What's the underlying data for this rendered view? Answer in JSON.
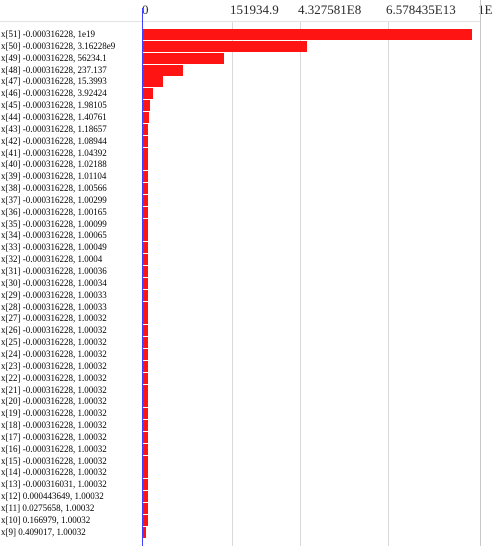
{
  "scale": {
    "ticks": [
      {
        "label": "0",
        "value": 0
      },
      {
        "label": "151934.9",
        "value": 0.2673
      },
      {
        "label": "4.327581E8",
        "value": 0.4673
      },
      {
        "label": "6.578435E13",
        "value": 0.7292
      },
      {
        "label": "1E",
        "value": 1.0
      }
    ]
  },
  "colors": {
    "bar": "#ff1414",
    "zero_line": "#4040ff",
    "grid": "#d9d9d9"
  },
  "rows": [
    {
      "label": "x[51] -0.000316228, 1e19",
      "fill": 1.0
    },
    {
      "label": "x[50] -0.000316228, 3.16228e9",
      "fill": 0.4982
    },
    {
      "label": "x[49] -0.000316228, 56234.1",
      "fill": 0.2467
    },
    {
      "label": "x[48] -0.000316228, 237.137",
      "fill": 0.1216
    },
    {
      "label": "x[47] -0.000316228, 15.3993",
      "fill": 0.0593
    },
    {
      "label": "x[46] -0.000316228, 3.92424",
      "fill": 0.0297
    },
    {
      "label": "x[45] -0.000316228, 1.98105",
      "fill": 0.0208
    },
    {
      "label": "x[44] -0.000316228, 1.40761",
      "fill": 0.0178
    },
    {
      "label": "x[43] -0.000316228, 1.18657",
      "fill": 0.0163
    },
    {
      "label": "x[42] -0.000316228, 1.08944",
      "fill": 0.0163
    },
    {
      "label": "x[41] -0.000316228, 1.04392",
      "fill": 0.0163
    },
    {
      "label": "x[40] -0.000316228, 1.02188",
      "fill": 0.0163
    },
    {
      "label": "x[39] -0.000316228, 1.01104",
      "fill": 0.0163
    },
    {
      "label": "x[38] -0.000316228, 1.00566",
      "fill": 0.0163
    },
    {
      "label": "x[37] -0.000316228, 1.00299",
      "fill": 0.0163
    },
    {
      "label": "x[36] -0.000316228, 1.00165",
      "fill": 0.0163
    },
    {
      "label": "x[35] -0.000316228, 1.00099",
      "fill": 0.0163
    },
    {
      "label": "x[34] -0.000316228, 1.00065",
      "fill": 0.0163
    },
    {
      "label": "x[33] -0.000316228, 1.00049",
      "fill": 0.0163
    },
    {
      "label": "x[32] -0.000316228, 1.0004",
      "fill": 0.0163
    },
    {
      "label": "x[31] -0.000316228, 1.00036",
      "fill": 0.0163
    },
    {
      "label": "x[30] -0.000316228, 1.00034",
      "fill": 0.0163
    },
    {
      "label": "x[29] -0.000316228, 1.00033",
      "fill": 0.0163
    },
    {
      "label": "x[28] -0.000316228, 1.00033",
      "fill": 0.0163
    },
    {
      "label": "x[27] -0.000316228, 1.00032",
      "fill": 0.0163
    },
    {
      "label": "x[26] -0.000316228, 1.00032",
      "fill": 0.0163
    },
    {
      "label": "x[25] -0.000316228, 1.00032",
      "fill": 0.0163
    },
    {
      "label": "x[24] -0.000316228, 1.00032",
      "fill": 0.0163
    },
    {
      "label": "x[23] -0.000316228, 1.00032",
      "fill": 0.0163
    },
    {
      "label": "x[22] -0.000316228, 1.00032",
      "fill": 0.0163
    },
    {
      "label": "x[21] -0.000316228, 1.00032",
      "fill": 0.0163
    },
    {
      "label": "x[20] -0.000316228, 1.00032",
      "fill": 0.0163
    },
    {
      "label": "x[19] -0.000316228, 1.00032",
      "fill": 0.0163
    },
    {
      "label": "x[18] -0.000316228, 1.00032",
      "fill": 0.0163
    },
    {
      "label": "x[17] -0.000316228, 1.00032",
      "fill": 0.0163
    },
    {
      "label": "x[16] -0.000316228, 1.00032",
      "fill": 0.0163
    },
    {
      "label": "x[15] -0.000316228, 1.00032",
      "fill": 0.0163
    },
    {
      "label": "x[14] -0.000316228, 1.00032",
      "fill": 0.0163
    },
    {
      "label": "x[13] -0.000316031, 1.00032",
      "fill": 0.0163
    },
    {
      "label": "x[12] 0.000443649, 1.00032",
      "fill": 0.0163
    },
    {
      "label": "x[11] 0.0275658, 1.00032",
      "fill": 0.0163
    },
    {
      "label": "x[10] 0.166979, 1.00032",
      "fill": 0.0163
    },
    {
      "label": "x[9] 0.409017, 1.00032",
      "fill": 0.0089
    }
  ]
}
